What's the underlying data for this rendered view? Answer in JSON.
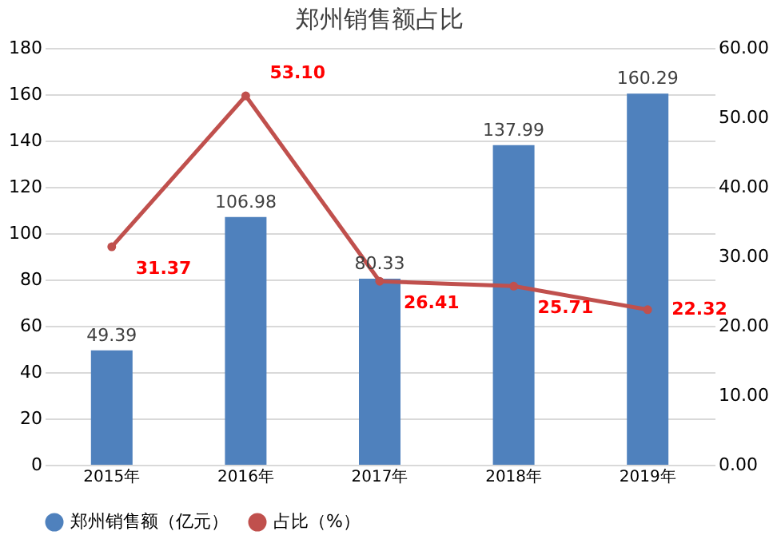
{
  "chart_data": {
    "type": "bar",
    "title": "郑州销售额占比",
    "categories": [
      "2015年",
      "2016年",
      "2017年",
      "2018年",
      "2019年"
    ],
    "series": [
      {
        "name": "郑州销售额（亿元）",
        "color": "#4f81bd",
        "values": [
          49.39,
          106.98,
          80.33,
          137.99,
          160.29
        ],
        "value_labels": [
          "49.39",
          "106.98",
          "80.33",
          "137.99",
          "160.29"
        ]
      },
      {
        "name": "占比（%）",
        "type": "line",
        "axis": "y2",
        "color": "#c0504d",
        "marker": "circle",
        "values": [
          31.37,
          53.1,
          26.41,
          25.71,
          22.32
        ],
        "value_labels": [
          "31.37",
          "53.10",
          "26.41",
          "25.71",
          "22.32"
        ]
      }
    ],
    "ylim": [
      0,
      180
    ],
    "yticks": [
      0,
      20,
      40,
      60,
      80,
      100,
      120,
      140,
      160,
      180
    ],
    "y2lim": [
      0,
      60
    ],
    "y2ticks": [
      {
        "value": 0,
        "label": "0.00"
      },
      {
        "value": 10,
        "label": "10.00"
      },
      {
        "value": 20,
        "label": "20.00"
      },
      {
        "value": 30,
        "label": "30.00"
      },
      {
        "value": 40,
        "label": "40.00"
      },
      {
        "value": 50,
        "label": "50.00"
      },
      {
        "value": 60,
        "label": "60.00"
      }
    ],
    "grid": "y",
    "legend": "bottom"
  }
}
